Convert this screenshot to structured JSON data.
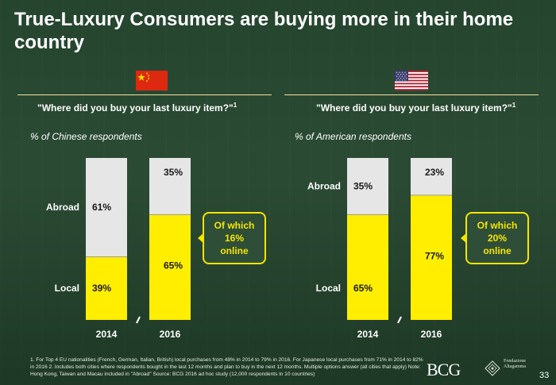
{
  "title": "True-Luxury Consumers are buying more in their home country",
  "colors": {
    "local": "#ffee00",
    "abroad": "#e6e6e6",
    "callout_border": "#f5e600",
    "callout_text": "#f5e600",
    "background": "#2c4a35"
  },
  "icons": {
    "left_flag": "china-flag-icon",
    "right_flag": "usa-flag-icon",
    "partner_logo": "altagamma-logo-icon"
  },
  "chart_data": [
    {
      "type": "bar",
      "stacked": true,
      "question": "\"Where did you buy your last luxury item?\"",
      "question_sup": "1",
      "subtitle": "% of Chinese respondents",
      "categories": [
        "2014",
        "2016"
      ],
      "series": [
        {
          "name": "Local",
          "values": [
            39,
            65
          ],
          "labels": [
            "39%",
            "65%"
          ]
        },
        {
          "name": "Abroad",
          "values": [
            61,
            35
          ],
          "labels": [
            "61%",
            "35%"
          ]
        }
      ],
      "ylim": [
        0,
        100
      ],
      "callout": {
        "line1": "Of which",
        "line2": "16%",
        "line3": "online"
      }
    },
    {
      "type": "bar",
      "stacked": true,
      "question": "\"Where did you buy your last luxury item?\"",
      "question_sup": "1",
      "subtitle": "% of  American respondents",
      "categories": [
        "2014",
        "2016"
      ],
      "series": [
        {
          "name": "Local",
          "values": [
            65,
            77
          ],
          "labels": [
            "65%",
            "77%"
          ]
        },
        {
          "name": "Abroad",
          "values": [
            35,
            23
          ],
          "labels": [
            "35%",
            "23%"
          ]
        }
      ],
      "ylim": [
        0,
        100
      ],
      "callout": {
        "line1": "Of which",
        "line2": "20%",
        "line3": "online"
      }
    }
  ],
  "footnote": "1. For Top 4 EU nationalities (French, German, Italian, British) local purchases from 48% in 2014 to 79% in 2016. For Japanese local purchases from 71% in 2014 to 82% in 2016    2. Includes both cities where respondents bought in the last 12 months and plan to buy in the next 12 months. Multiple options answer (all cities that apply)  Note: Hong Kong, Taiwan and Macau included in \"Abroad\" Source: BCG 2016 ad hoc study (12,000 respondents in 10 countries)",
  "brand": "BCG",
  "partner": "Fondazione Altagamma",
  "page_number": "33"
}
